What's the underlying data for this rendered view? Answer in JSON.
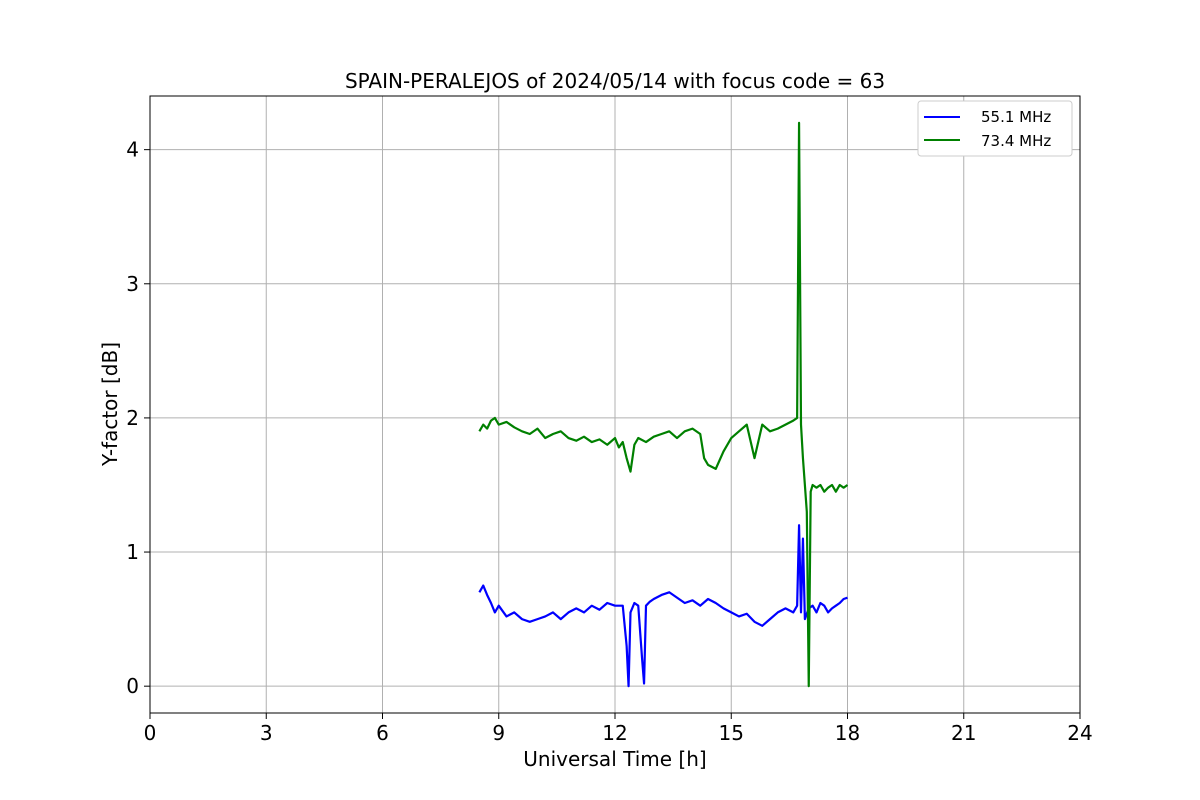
{
  "chart_data": {
    "type": "line",
    "title": "SPAIN-PERALEJOS of 2024/05/14 with focus code = 63",
    "xlabel": "Universal Time [h]",
    "ylabel": "Y-factor [dB]",
    "xlim": [
      0,
      24
    ],
    "ylim": [
      -0.2,
      4.4
    ],
    "xticks": [
      0,
      3,
      6,
      9,
      12,
      15,
      18,
      21,
      24
    ],
    "yticks": [
      0,
      1,
      2,
      3,
      4
    ],
    "xtick_labels": [
      "0",
      "3",
      "6",
      "9",
      "12",
      "15",
      "18",
      "21",
      "24"
    ],
    "ytick_labels": [
      "0",
      "1",
      "2",
      "3",
      "4"
    ],
    "grid": true,
    "legend_position": "top-right",
    "series": [
      {
        "name": "55.1 MHz",
        "color": "#0000ff",
        "x": [
          8.5,
          8.6,
          8.7,
          8.8,
          8.9,
          9.0,
          9.2,
          9.4,
          9.6,
          9.8,
          10.0,
          10.2,
          10.4,
          10.6,
          10.8,
          11.0,
          11.2,
          11.4,
          11.6,
          11.8,
          12.0,
          12.2,
          12.3,
          12.35,
          12.4,
          12.5,
          12.6,
          12.7,
          12.75,
          12.8,
          12.9,
          13.0,
          13.2,
          13.4,
          13.6,
          13.8,
          14.0,
          14.2,
          14.4,
          14.6,
          14.8,
          15.0,
          15.2,
          15.4,
          15.6,
          15.8,
          16.0,
          16.2,
          16.4,
          16.6,
          16.7,
          16.75,
          16.8,
          16.85,
          16.9,
          17.0,
          17.1,
          17.2,
          17.3,
          17.4,
          17.5,
          17.6,
          17.7,
          17.8,
          17.9,
          18.0
        ],
        "y": [
          0.7,
          0.75,
          0.68,
          0.62,
          0.55,
          0.6,
          0.52,
          0.55,
          0.5,
          0.48,
          0.5,
          0.52,
          0.55,
          0.5,
          0.55,
          0.58,
          0.55,
          0.6,
          0.57,
          0.62,
          0.6,
          0.6,
          0.3,
          0.0,
          0.55,
          0.62,
          0.6,
          0.2,
          0.02,
          0.6,
          0.63,
          0.65,
          0.68,
          0.7,
          0.66,
          0.62,
          0.64,
          0.6,
          0.65,
          0.62,
          0.58,
          0.55,
          0.52,
          0.54,
          0.48,
          0.45,
          0.5,
          0.55,
          0.58,
          0.55,
          0.6,
          1.2,
          0.55,
          1.1,
          0.5,
          0.58,
          0.6,
          0.55,
          0.62,
          0.6,
          0.55,
          0.58,
          0.6,
          0.62,
          0.65,
          0.66
        ]
      },
      {
        "name": "73.4 MHz",
        "color": "#008000",
        "x": [
          8.5,
          8.6,
          8.7,
          8.8,
          8.9,
          9.0,
          9.2,
          9.4,
          9.6,
          9.8,
          10.0,
          10.2,
          10.4,
          10.6,
          10.8,
          11.0,
          11.2,
          11.4,
          11.6,
          11.8,
          12.0,
          12.1,
          12.2,
          12.3,
          12.4,
          12.5,
          12.6,
          12.8,
          13.0,
          13.2,
          13.4,
          13.6,
          13.8,
          14.0,
          14.2,
          14.3,
          14.4,
          14.6,
          14.8,
          15.0,
          15.2,
          15.4,
          15.6,
          15.8,
          16.0,
          16.2,
          16.4,
          16.6,
          16.7,
          16.75,
          16.8,
          16.85,
          16.9,
          16.95,
          17.0,
          17.05,
          17.1,
          17.2,
          17.3,
          17.4,
          17.5,
          17.6,
          17.7,
          17.8,
          17.9,
          18.0
        ],
        "y": [
          1.9,
          1.95,
          1.92,
          1.98,
          2.0,
          1.95,
          1.97,
          1.93,
          1.9,
          1.88,
          1.92,
          1.85,
          1.88,
          1.9,
          1.85,
          1.83,
          1.86,
          1.82,
          1.84,
          1.8,
          1.85,
          1.78,
          1.82,
          1.7,
          1.6,
          1.8,
          1.85,
          1.82,
          1.86,
          1.88,
          1.9,
          1.85,
          1.9,
          1.92,
          1.88,
          1.7,
          1.65,
          1.62,
          1.75,
          1.85,
          1.9,
          1.95,
          1.7,
          1.95,
          1.9,
          1.92,
          1.95,
          1.98,
          2.0,
          4.2,
          1.95,
          1.7,
          1.5,
          1.3,
          0.0,
          1.45,
          1.5,
          1.48,
          1.5,
          1.45,
          1.48,
          1.5,
          1.45,
          1.5,
          1.48,
          1.5
        ]
      }
    ]
  }
}
